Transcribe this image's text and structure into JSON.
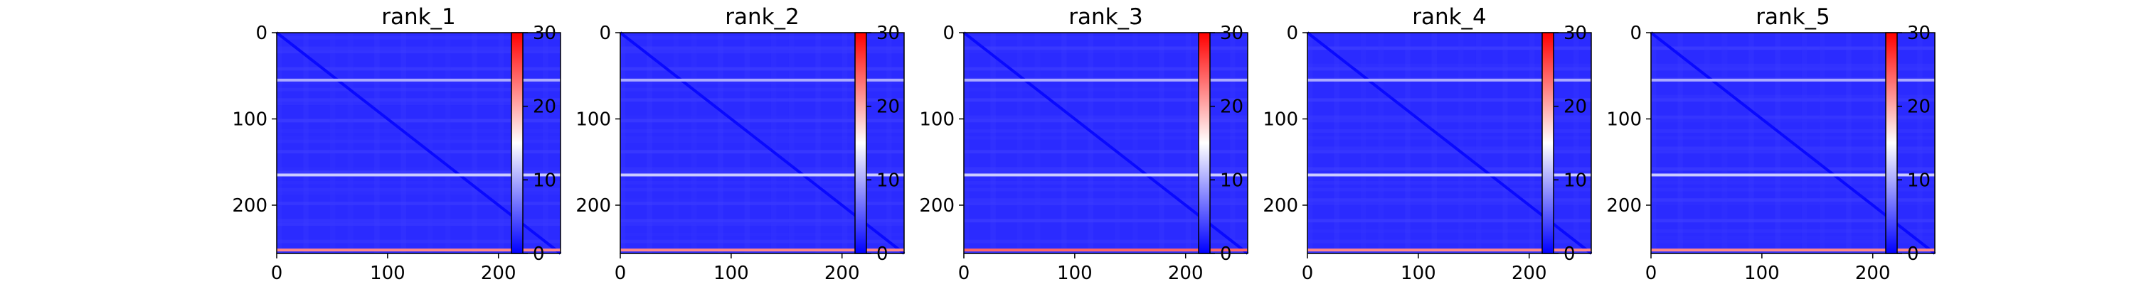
{
  "chart_data": [
    {
      "type": "heatmap",
      "title": "rank_1",
      "xlabel": "",
      "ylabel": "",
      "x_ticks": [
        "0",
        "100",
        "200"
      ],
      "y_ticks": [
        "0",
        "100",
        "200"
      ],
      "x_range": [
        0,
        256
      ],
      "y_range": [
        0,
        256
      ],
      "y_inverted": true,
      "colorbar": {
        "ticks": [
          "0",
          "10",
          "20",
          "30"
        ],
        "range": [
          0,
          30
        ],
        "colormap": "bwr"
      },
      "pattern": {
        "base_value": 2.5,
        "diagonal_value": 0.5,
        "bright_rows": [
          {
            "row": 55,
            "value": 10
          },
          {
            "row": 165,
            "value": 12
          },
          {
            "row": 252,
            "value": 22
          }
        ]
      }
    },
    {
      "type": "heatmap",
      "title": "rank_2",
      "xlabel": "",
      "ylabel": "",
      "x_ticks": [
        "0",
        "100",
        "200"
      ],
      "y_ticks": [
        "0",
        "100",
        "200"
      ],
      "x_range": [
        0,
        256
      ],
      "y_range": [
        0,
        256
      ],
      "y_inverted": true,
      "colorbar": {
        "ticks": [
          "0",
          "10",
          "20",
          "30"
        ],
        "range": [
          0,
          30
        ],
        "colormap": "bwr"
      },
      "pattern": {
        "base_value": 2.5,
        "diagonal_value": 0.5,
        "bright_rows": [
          {
            "row": 55,
            "value": 10
          },
          {
            "row": 165,
            "value": 12
          },
          {
            "row": 252,
            "value": 22
          }
        ]
      }
    },
    {
      "type": "heatmap",
      "title": "rank_3",
      "xlabel": "",
      "ylabel": "",
      "x_ticks": [
        "0",
        "100",
        "200"
      ],
      "y_ticks": [
        "0",
        "100",
        "200"
      ],
      "x_range": [
        0,
        256
      ],
      "y_range": [
        0,
        256
      ],
      "y_inverted": true,
      "colorbar": {
        "ticks": [
          "0",
          "10",
          "20",
          "30"
        ],
        "range": [
          0,
          30
        ],
        "colormap": "bwr"
      },
      "pattern": {
        "base_value": 2.5,
        "diagonal_value": 0.5,
        "bright_rows": [
          {
            "row": 55,
            "value": 10
          },
          {
            "row": 165,
            "value": 12
          },
          {
            "row": 252,
            "value": 24
          }
        ]
      }
    },
    {
      "type": "heatmap",
      "title": "rank_4",
      "xlabel": "",
      "ylabel": "",
      "x_ticks": [
        "0",
        "100",
        "200"
      ],
      "y_ticks": [
        "0",
        "100",
        "200"
      ],
      "x_range": [
        0,
        256
      ],
      "y_range": [
        0,
        256
      ],
      "y_inverted": true,
      "colorbar": {
        "ticks": [
          "0",
          "10",
          "20",
          "30"
        ],
        "range": [
          0,
          30
        ],
        "colormap": "bwr"
      },
      "pattern": {
        "base_value": 2.5,
        "diagonal_value": 0.5,
        "bright_rows": [
          {
            "row": 55,
            "value": 10
          },
          {
            "row": 165,
            "value": 12
          },
          {
            "row": 252,
            "value": 22
          }
        ]
      }
    },
    {
      "type": "heatmap",
      "title": "rank_5",
      "xlabel": "",
      "ylabel": "",
      "x_ticks": [
        "0",
        "100",
        "200"
      ],
      "y_ticks": [
        "0",
        "100",
        "200"
      ],
      "x_range": [
        0,
        256
      ],
      "y_range": [
        0,
        256
      ],
      "y_inverted": true,
      "colorbar": {
        "ticks": [
          "0",
          "10",
          "20",
          "30"
        ],
        "range": [
          0,
          30
        ],
        "colormap": "bwr"
      },
      "pattern": {
        "base_value": 2.5,
        "diagonal_value": 0.5,
        "bright_rows": [
          {
            "row": 55,
            "value": 10
          },
          {
            "row": 165,
            "value": 12
          },
          {
            "row": 252,
            "value": 22
          }
        ]
      }
    }
  ]
}
